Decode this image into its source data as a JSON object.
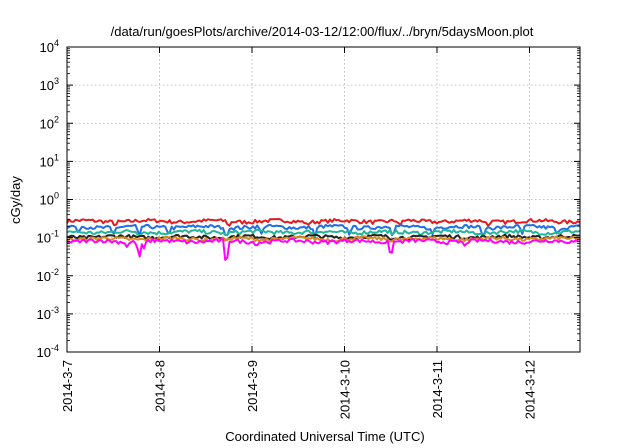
{
  "chart_data": {
    "type": "line",
    "title": "/data/run/goesPlots/archive/2014-03-12/12:00/flux/../bryn/5daysMoon.plot",
    "xlabel": "Coordinated Universal Time (UTC)",
    "ylabel": "cGy/day",
    "x_range": [
      "2014-03-07 00:00",
      "2014-03-12 13:00"
    ],
    "x_ticks": [
      "2014-3-7",
      "2014-3-8",
      "2014-3-9",
      "2014-3-10",
      "2014-3-11",
      "2014-3-12"
    ],
    "y_scale": "log",
    "ylim": [
      0.0001,
      10000
    ],
    "y_ticks": [
      {
        "base": "10",
        "exp": "-4"
      },
      {
        "base": "10",
        "exp": "-3"
      },
      {
        "base": "10",
        "exp": "-2"
      },
      {
        "base": "10",
        "exp": "-1"
      },
      {
        "base": "10",
        "exp": "0"
      },
      {
        "base": "10",
        "exp": "1"
      },
      {
        "base": "10",
        "exp": "2"
      },
      {
        "base": "10",
        "exp": "3"
      },
      {
        "base": "10",
        "exp": "4"
      }
    ],
    "grid": true,
    "series": [
      {
        "color": "#e41a1c",
        "level": 0.27,
        "dip_times": [
          0.52,
          1.75,
          2.6,
          3.6,
          4.55
        ],
        "dip_values": [
          0.2,
          0.19,
          0.21,
          0.2,
          0.2
        ]
      },
      {
        "color": "#1f6fe5",
        "level": 0.19,
        "dip_times": [
          0.12,
          0.5,
          0.78,
          1.1,
          1.72,
          2.1,
          2.68,
          3.05,
          3.52,
          3.95,
          4.5,
          4.92,
          5.3
        ],
        "dip_values": [
          0.13,
          0.11,
          0.1,
          0.12,
          0.09,
          0.12,
          0.1,
          0.12,
          0.1,
          0.12,
          0.1,
          0.12,
          0.11
        ]
      },
      {
        "color": "#21b59a",
        "level": 0.14,
        "dip_times": [
          0.78,
          1.72,
          2.68,
          3.52,
          4.5
        ],
        "dip_values": [
          0.11,
          0.11,
          0.11,
          0.11,
          0.11
        ]
      },
      {
        "color": "#222222",
        "level": 0.105,
        "dip_times": [
          1.72,
          3.5
        ],
        "dip_values": [
          0.085,
          0.085
        ]
      },
      {
        "color": "#d98a1a",
        "level": 0.093,
        "dip_times": [
          1.72,
          3.5
        ],
        "dip_values": [
          0.078,
          0.078
        ]
      },
      {
        "color": "#ff00ff",
        "level": 0.08,
        "dip_times": [
          0.65,
          0.78,
          0.83,
          1.72,
          2.05,
          3.5,
          4.3
        ],
        "dip_values": [
          0.055,
          0.026,
          0.05,
          0.014,
          0.06,
          0.028,
          0.06
        ]
      }
    ]
  }
}
